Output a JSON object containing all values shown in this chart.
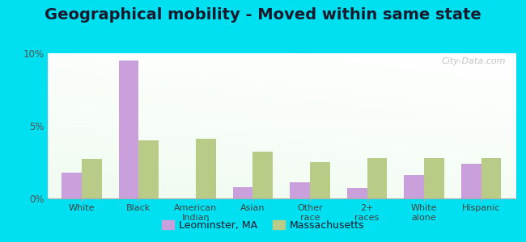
{
  "title": "Geographical mobility - Moved within same state",
  "categories": [
    "White",
    "Black",
    "American\nIndian",
    "Asian",
    "Other\nrace",
    "2+\nraces",
    "White\nalone",
    "Hispanic"
  ],
  "leominster_values": [
    1.8,
    9.5,
    0.0,
    0.8,
    1.1,
    0.7,
    1.6,
    2.4
  ],
  "massachusetts_values": [
    2.7,
    4.0,
    4.1,
    3.2,
    2.5,
    2.8,
    2.8,
    2.8
  ],
  "leominster_color": "#c9a0dc",
  "massachusetts_color": "#b8cc88",
  "ylim": [
    0,
    10
  ],
  "yticks": [
    0,
    5,
    10
  ],
  "ytick_labels": [
    "0%",
    "5%",
    "10%"
  ],
  "background_outer": "#00e0f0",
  "title_fontsize": 14,
  "legend_labels": [
    "Leominster, MA",
    "Massachusetts"
  ],
  "watermark": "City-Data.com",
  "bar_width": 0.35
}
